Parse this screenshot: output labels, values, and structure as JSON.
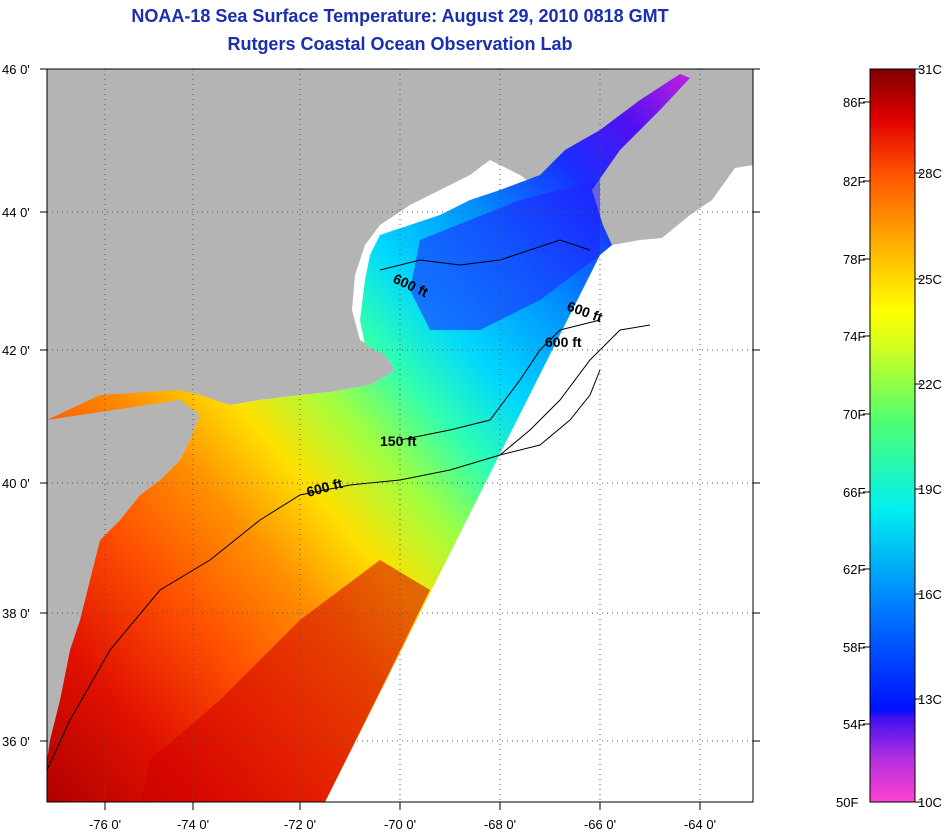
{
  "header": {
    "title": "NOAA-18 Sea Surface Temperature:  August 29, 2010 0818 GMT",
    "subtitle": "Rutgers Coastal Ocean Observation Lab"
  },
  "map": {
    "lat_labels": [
      "46 0'",
      "44 0'",
      "42 0'",
      "40 0'",
      "38 0'",
      "36 0'"
    ],
    "lon_labels": [
      "-76 0'",
      "-74 0'",
      "-72 0'",
      "-70 0'",
      "-68 0'",
      "-66 0'",
      "-64 0'"
    ],
    "contour_labels": [
      "600 ft",
      "600 ft",
      "600 ft",
      "150 ft",
      "600 ft"
    ],
    "colors": {
      "land": "#b4b4b4",
      "ocean_no_data": "#ffffff"
    }
  },
  "colorbar": {
    "fahrenheit_labels": [
      "86F",
      "82F",
      "78F",
      "74F",
      "70F",
      "66F",
      "62F",
      "58F",
      "54F",
      "50F"
    ],
    "celsius_labels": [
      "31C",
      "28C",
      "25C",
      "22C",
      "19C",
      "16C",
      "13C",
      "10C"
    ],
    "colors": [
      "#ff40d0",
      "#9020e0",
      "#0010ff",
      "#0080ff",
      "#00e0ff",
      "#40ff80",
      "#c0ff20",
      "#ffff00",
      "#ffa000",
      "#ff4000",
      "#e00000",
      "#800000"
    ]
  }
}
